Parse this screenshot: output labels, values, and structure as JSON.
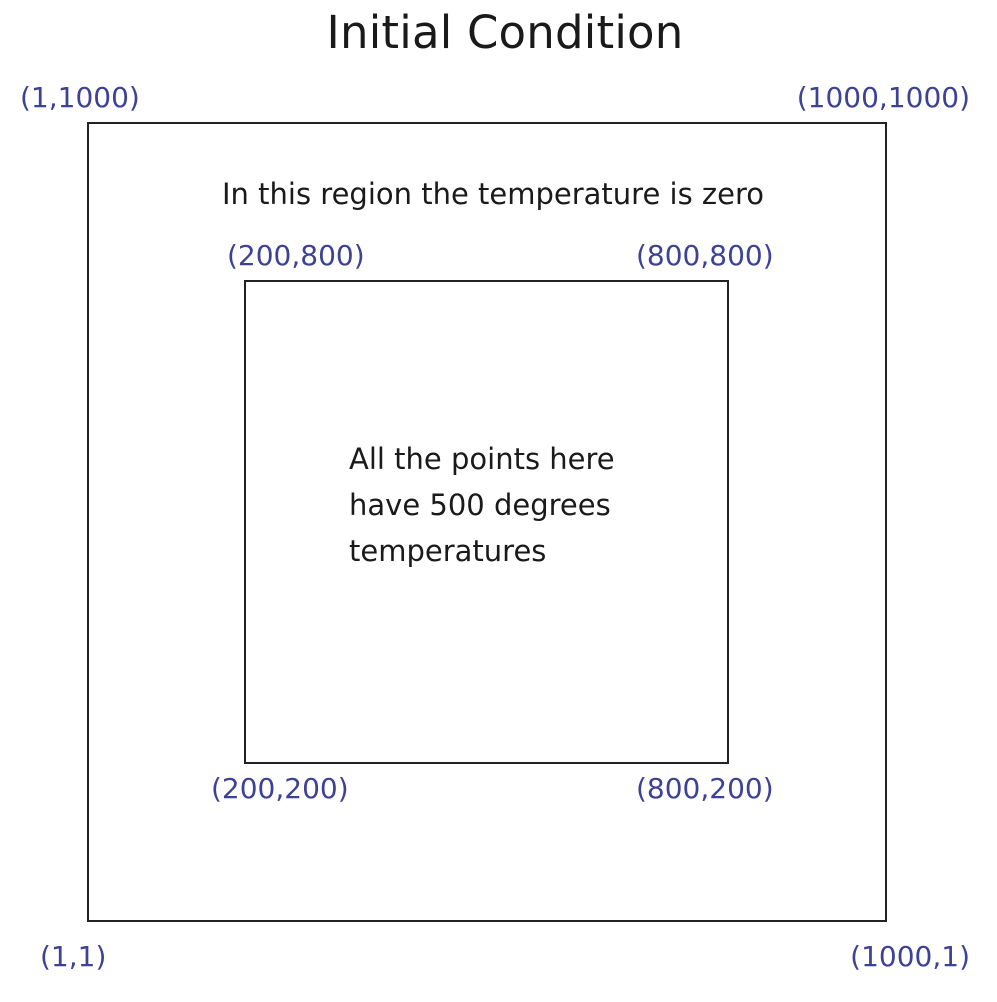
{
  "title": "Initial Condition",
  "outer_region": {
    "label": "In this region the temperature is zero",
    "corners": {
      "top_left": "(1,1000)",
      "top_right": "(1000,1000)",
      "bottom_left": "(1,1)",
      "bottom_right": "(1000,1)"
    }
  },
  "inner_region": {
    "label_lines": [
      "All the points here",
      "have 500 degrees",
      "temperatures"
    ],
    "corners": {
      "top_left": "(200,800)",
      "top_right": "(800,800)",
      "bottom_left": "(200,200)",
      "bottom_right": "(800,200)"
    }
  },
  "colors": {
    "coordinate_label": "#3d4296",
    "text": "#1a1a1a",
    "border": "#222222"
  }
}
